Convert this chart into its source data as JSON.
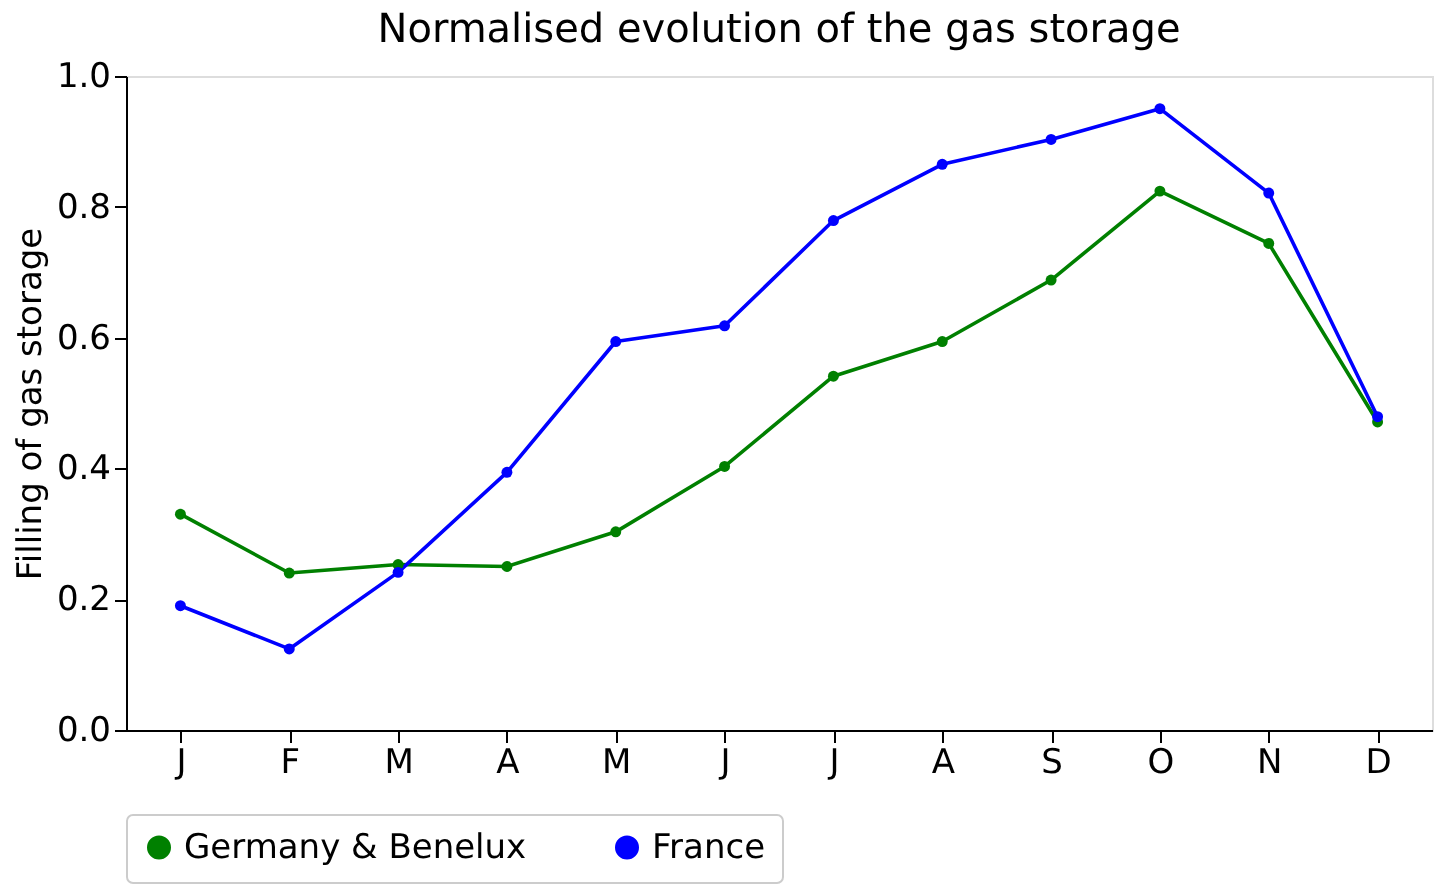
{
  "chart_data": {
    "type": "line",
    "title": "Normalised evolution of the gas storage",
    "ylabel": "Filling of gas storage",
    "categories": [
      "J",
      "F",
      "M",
      "A",
      "M",
      "J",
      "J",
      "A",
      "S",
      "O",
      "N",
      "D"
    ],
    "series": [
      {
        "name": "Germany & Benelux",
        "color": "#008000",
        "values": [
          0.33,
          0.24,
          0.253,
          0.25,
          0.303,
          0.403,
          0.541,
          0.594,
          0.688,
          0.824,
          0.744,
          0.471
        ]
      },
      {
        "name": "France",
        "color": "#0000ff",
        "values": [
          0.19,
          0.124,
          0.241,
          0.394,
          0.594,
          0.618,
          0.779,
          0.865,
          0.903,
          0.95,
          0.821,
          0.479
        ]
      }
    ],
    "ylim": [
      0,
      1.0
    ],
    "yticks": [
      {
        "value": 0,
        "label": "0.0"
      },
      0.2,
      0.4,
      0.6,
      0.8,
      {
        "value": 1,
        "label": "1.0"
      }
    ],
    "grid": false,
    "legend": "bottom",
    "marker": "circle",
    "line_style": "solid"
  }
}
